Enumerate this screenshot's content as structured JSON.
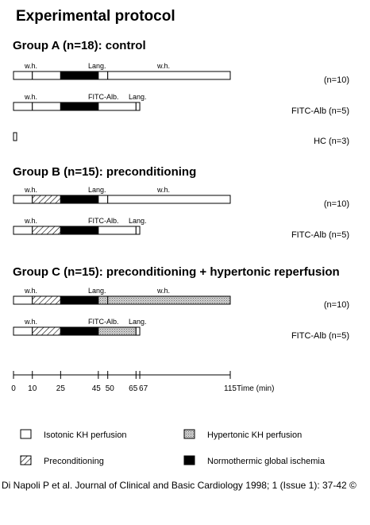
{
  "title": "Experimental protocol",
  "groups": [
    {
      "heading": "Group A (n=18): control",
      "rows": [
        {
          "top_labels": [
            "w.h.",
            "Lang.",
            "w.h."
          ],
          "right_label": "(n=10)",
          "segments": [
            [
              "iso",
              0,
              10
            ],
            [
              "iso",
              10,
              25
            ],
            [
              "isch",
              25,
              45
            ],
            [
              "iso",
              45,
              50
            ],
            [
              "iso",
              50,
              115
            ]
          ]
        },
        {
          "top_labels": [
            "w.h.",
            "FITC-Alb.",
            "Lang."
          ],
          "right_label": "FITC-Alb (n=5)",
          "segments": [
            [
              "iso",
              0,
              10
            ],
            [
              "iso",
              10,
              25
            ],
            [
              "isch",
              25,
              45
            ],
            [
              "iso",
              45,
              65
            ],
            [
              "iso",
              65,
              67
            ]
          ]
        },
        {
          "top_labels": [],
          "right_label": "HC (n=3)",
          "segments": [
            [
              "iso",
              0,
              1
            ]
          ]
        }
      ]
    },
    {
      "heading": "Group B (n=15): preconditioning",
      "rows": [
        {
          "top_labels": [
            "w.h.",
            "Lang.",
            "w.h."
          ],
          "right_label": "(n=10)",
          "segments": [
            [
              "iso",
              0,
              10
            ],
            [
              "pre",
              10,
              25
            ],
            [
              "isch",
              25,
              45
            ],
            [
              "iso",
              45,
              50
            ],
            [
              "iso",
              50,
              115
            ]
          ]
        },
        {
          "top_labels": [
            "w.h.",
            "FITC-Alb.",
            "Lang."
          ],
          "right_label": "FITC-Alb (n=5)",
          "segments": [
            [
              "iso",
              0,
              10
            ],
            [
              "pre",
              10,
              25
            ],
            [
              "isch",
              25,
              45
            ],
            [
              "iso",
              45,
              65
            ],
            [
              "iso",
              65,
              67
            ]
          ]
        }
      ]
    },
    {
      "heading": "Group C (n=15): preconditioning + hypertonic reperfusion",
      "rows": [
        {
          "top_labels": [
            "w.h.",
            "Lang.",
            "w.h."
          ],
          "right_label": "(n=10)",
          "segments": [
            [
              "iso",
              0,
              10
            ],
            [
              "pre",
              10,
              25
            ],
            [
              "isch",
              25,
              45
            ],
            [
              "hyper",
              45,
              50
            ],
            [
              "hyper",
              50,
              115
            ]
          ]
        },
        {
          "top_labels": [
            "w.h.",
            "FITC-Alb.",
            "Lang."
          ],
          "right_label": "FITC-Alb (n=5)",
          "segments": [
            [
              "iso",
              0,
              10
            ],
            [
              "pre",
              10,
              25
            ],
            [
              "isch",
              25,
              45
            ],
            [
              "hyper",
              45,
              65
            ],
            [
              "iso",
              65,
              67
            ]
          ]
        }
      ]
    }
  ],
  "axis": {
    "ticks": [
      "0",
      "10",
      "25",
      "45",
      "50",
      "65",
      "67",
      "115"
    ],
    "tick_values": [
      0,
      10,
      25,
      45,
      50,
      65,
      67,
      115
    ],
    "unit_label": "Time (min)"
  },
  "legend": [
    {
      "key": "iso",
      "label": "Isotonic KH perfusion"
    },
    {
      "key": "hyper",
      "label": "Hypertonic KH perfusion"
    },
    {
      "key": "pre",
      "label": "Preconditioning"
    },
    {
      "key": "isch",
      "label": "Normothermic global ischemia"
    }
  ],
  "citation": "Di Napoli P et al. Journal of Clinical and Basic Cardiology 1998; 1 (Issue 1): 37-42 ©"
}
